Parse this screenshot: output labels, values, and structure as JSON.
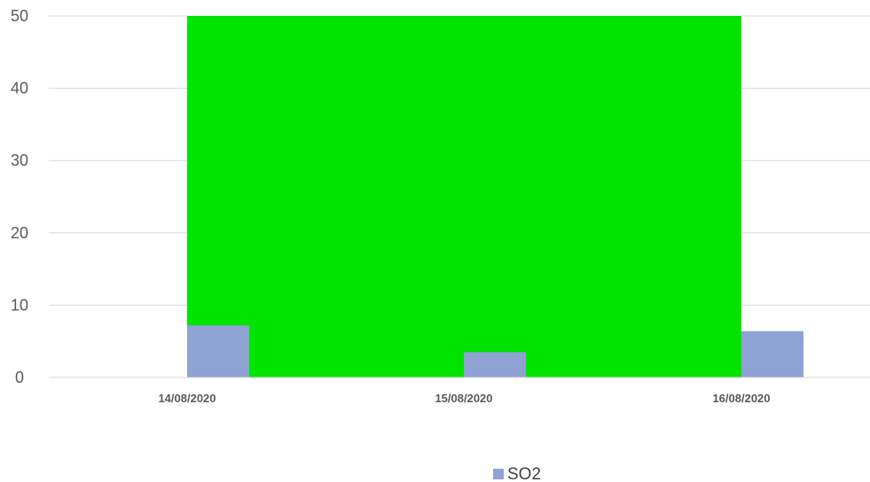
{
  "chart_data": {
    "type": "bar",
    "categories": [
      "14/08/2020",
      "15/08/2020",
      "16/08/2020"
    ],
    "series": [
      {
        "name": "SO2",
        "values": [
          7.2,
          3.5,
          6.4
        ],
        "color": "#8FA2D4"
      }
    ],
    "band": {
      "from_category": "14/08/2020",
      "to_category": "16/08/2020",
      "color": "#00E400"
    },
    "yticks": [
      "0",
      "10",
      "20",
      "30",
      "40",
      "50"
    ],
    "ylim": [
      0,
      50
    ],
    "grid": true,
    "legend_position": "bottom",
    "title": "",
    "xlabel": "",
    "ylabel": ""
  }
}
